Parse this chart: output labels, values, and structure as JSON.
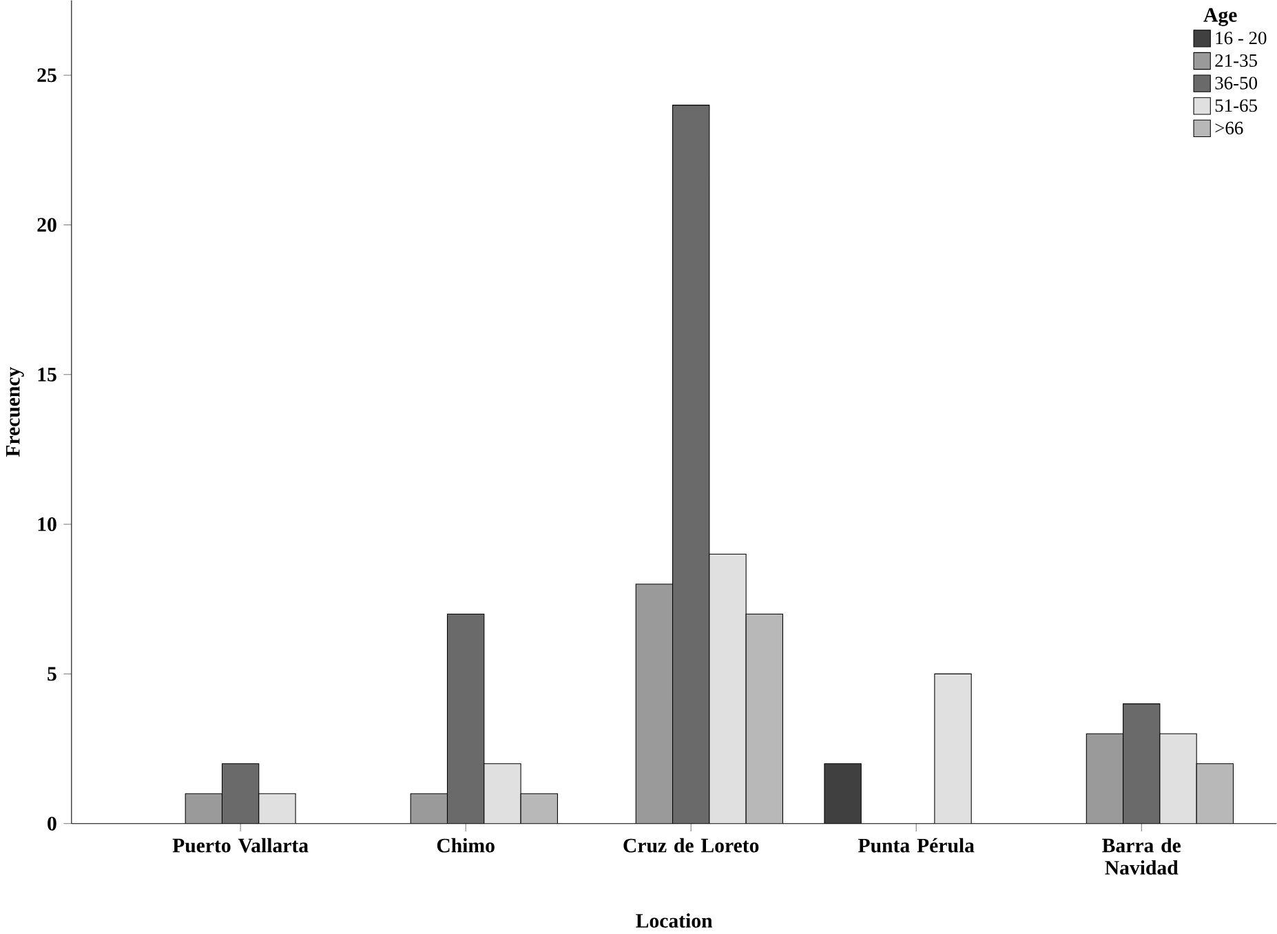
{
  "chart_data": {
    "type": "bar",
    "xlabel": "Location",
    "ylabel": "Frecuency",
    "legend_title": "Age",
    "categories": [
      "Puerto Vallarta",
      "Chimo",
      "Cruz de Loreto",
      "Punta Pérula",
      "Barra de Navidad"
    ],
    "series": [
      {
        "name": "16 - 20",
        "color": "#404040",
        "values": [
          null,
          null,
          null,
          2,
          null
        ]
      },
      {
        "name": "21-35",
        "color": "#9a9a9a",
        "values": [
          1,
          1,
          8,
          null,
          3
        ]
      },
      {
        "name": "36-50",
        "color": "#6a6a6a",
        "values": [
          2,
          7,
          24,
          null,
          4
        ]
      },
      {
        "name": "51-65",
        "color": "#e0e0e0",
        "values": [
          1,
          2,
          9,
          5,
          3
        ]
      },
      {
        "name": ">66",
        "color": "#b8b8b8",
        "values": [
          null,
          1,
          7,
          null,
          2
        ]
      }
    ],
    "ylim": [
      0,
      27.5
    ],
    "yticks": [
      0,
      5,
      10,
      15,
      20,
      25
    ],
    "grid": false,
    "legend": "top right"
  }
}
